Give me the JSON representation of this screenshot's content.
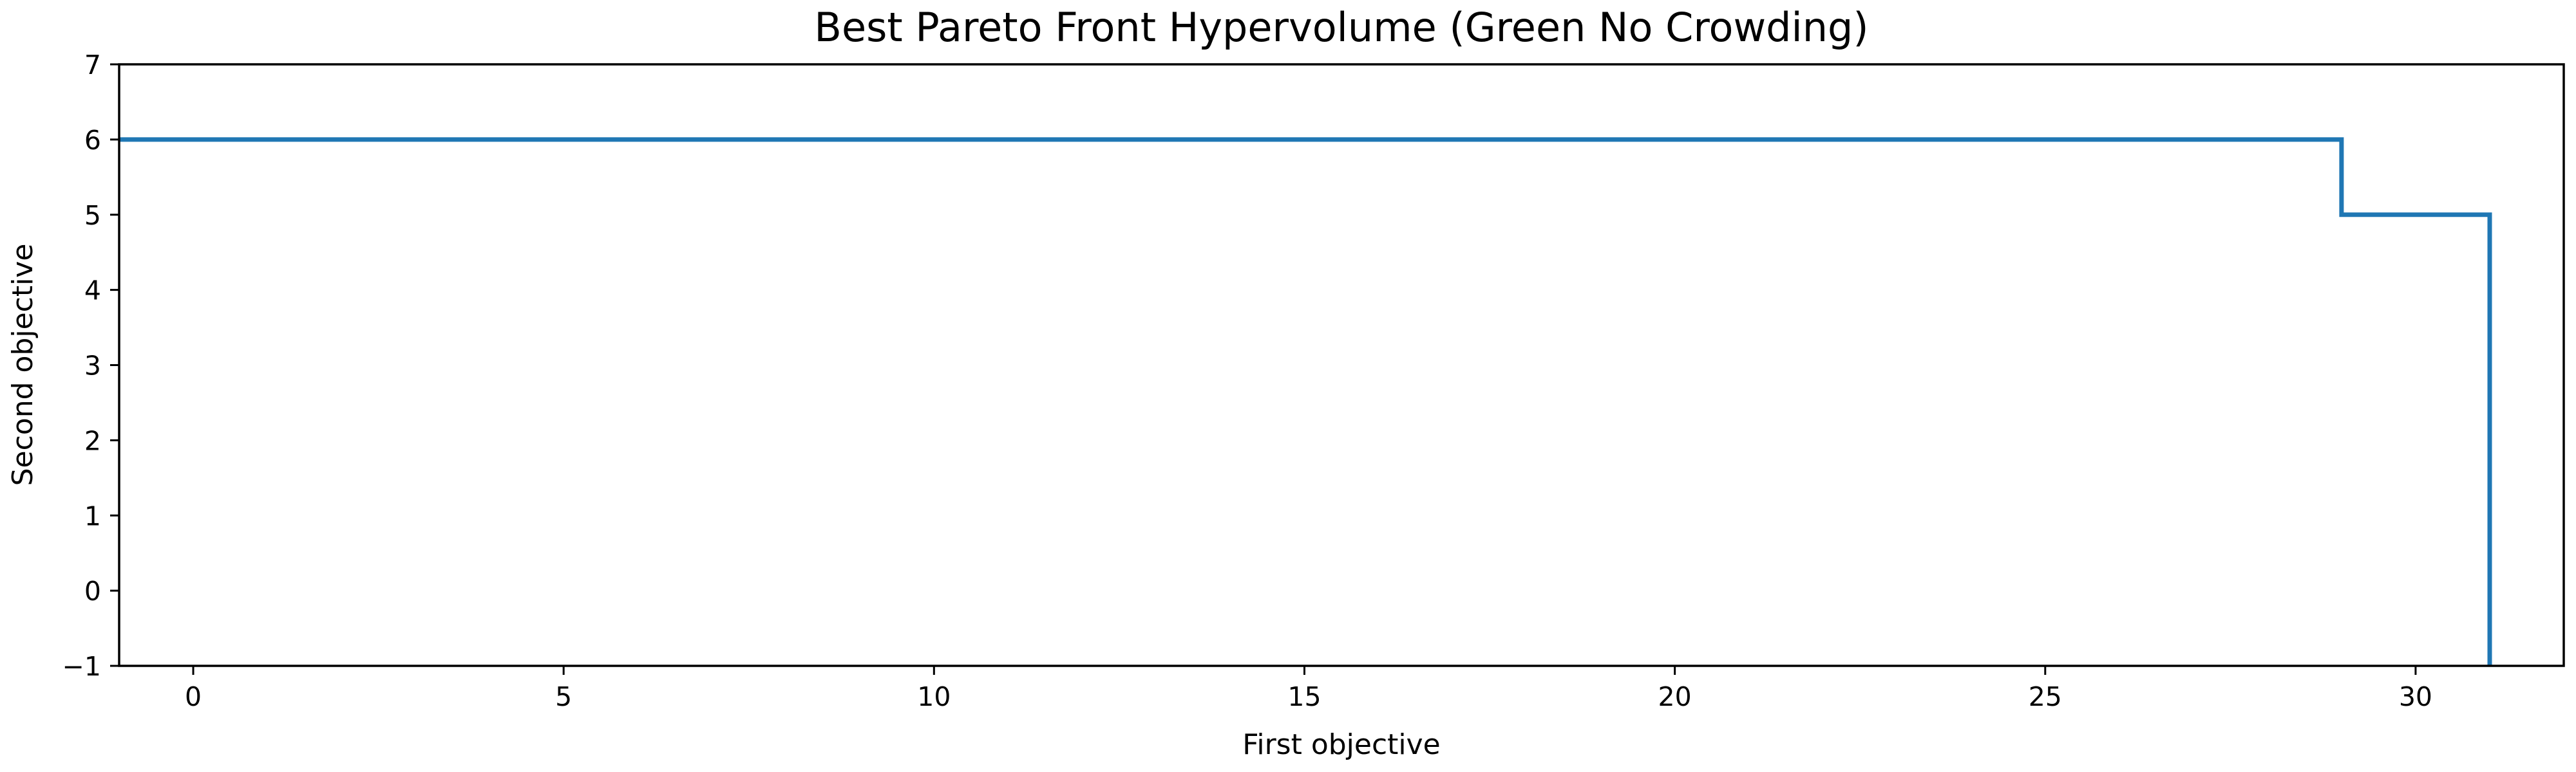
{
  "chart_data": {
    "type": "line",
    "title": "Best Pareto Front Hypervolume (Green No Crowding)",
    "xlabel": "First objective",
    "ylabel": "Second objective",
    "xlim": [
      -1,
      32
    ],
    "ylim": [
      -1,
      7
    ],
    "xticks": [
      0,
      5,
      10,
      15,
      20,
      25,
      30
    ],
    "yticks": [
      -1,
      0,
      1,
      2,
      3,
      4,
      5,
      6,
      7
    ],
    "ytick_labels": [
      "−1",
      "0",
      "1",
      "2",
      "3",
      "4",
      "5",
      "6",
      "7"
    ],
    "grid": false,
    "series": [
      {
        "color": "#1f77b4",
        "x": [
          -1,
          29,
          29,
          31,
          31
        ],
        "y": [
          6,
          6,
          5,
          5,
          -1
        ]
      }
    ]
  }
}
